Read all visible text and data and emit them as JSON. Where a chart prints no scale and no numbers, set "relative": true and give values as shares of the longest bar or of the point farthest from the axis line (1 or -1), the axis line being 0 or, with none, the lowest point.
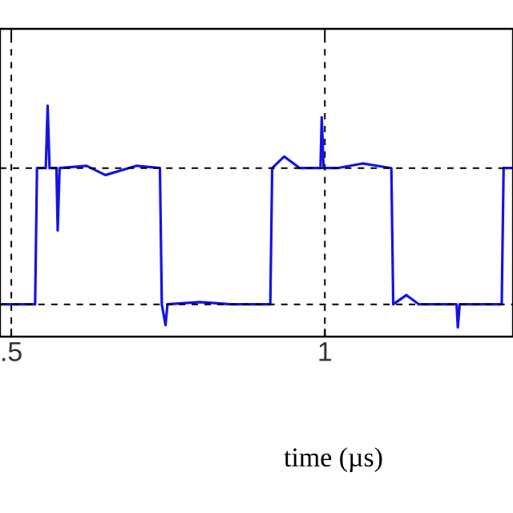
{
  "chart_data": {
    "type": "line",
    "relative": true,
    "xlabel": "time (µs)",
    "xlim": [
      0.482,
      1.3
    ],
    "xticks": [
      {
        "value": 0.5,
        "label": ".5"
      },
      1
    ],
    "grid": "x",
    "line_style": "solid",
    "marker": "none",
    "ref_lines": [
      {
        "axis": "y",
        "value": 0.73,
        "line_style": "dashed",
        "color": "#000000"
      },
      {
        "axis": "y",
        "value": 0.14,
        "line_style": "dashed",
        "color": "#000000"
      }
    ],
    "series": [
      {
        "color": "#1414e6",
        "x": [
          0.482,
          0.538,
          0.541,
          0.555,
          0.558,
          0.561,
          0.572,
          0.574,
          0.577,
          0.62,
          0.65,
          0.7,
          0.737,
          0.74,
          0.746,
          0.749,
          0.8,
          0.85,
          0.913,
          0.916,
          0.935,
          0.96,
          0.993,
          0.995,
          0.998,
          1.02,
          1.06,
          1.106,
          1.109,
          1.13,
          1.15,
          1.21,
          1.212,
          1.215,
          1.282,
          1.285,
          1.3
        ],
        "values": [
          0.14,
          0.14,
          0.73,
          0.73,
          1.0,
          0.73,
          0.73,
          0.46,
          0.73,
          0.74,
          0.7,
          0.74,
          0.73,
          0.14,
          0.05,
          0.14,
          0.15,
          0.14,
          0.14,
          0.73,
          0.78,
          0.73,
          0.73,
          0.95,
          0.73,
          0.73,
          0.75,
          0.73,
          0.14,
          0.18,
          0.14,
          0.14,
          0.04,
          0.14,
          0.14,
          0.73,
          0.73
        ]
      }
    ]
  }
}
